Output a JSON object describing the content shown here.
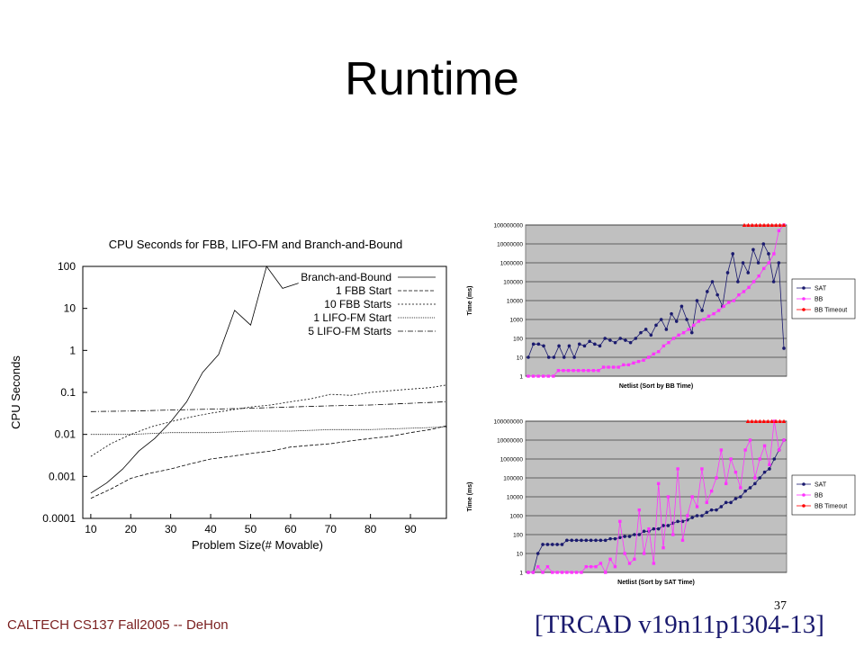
{
  "slide": {
    "title": "Runtime",
    "footer": "CALTECH CS137 Fall2005 -- DeHon",
    "page_number": "37",
    "citation": "[TRCAD v19n11p1304-13]"
  },
  "chart_data": [
    {
      "type": "line",
      "title": "CPU Seconds for FBB, LIFO-FM and Branch-and-Bound",
      "xlabel": "Problem Size(# Movable)",
      "ylabel": "CPU Seconds",
      "xlim": [
        8,
        99
      ],
      "ylim": [
        0.0001,
        100
      ],
      "yscale": "log",
      "xticks": [
        "10",
        "20",
        "30",
        "40",
        "50",
        "60",
        "70",
        "80",
        "90"
      ],
      "yticks": [
        "100",
        "10",
        "1",
        "0.1",
        "0.01",
        "0.001",
        "0.0001"
      ],
      "legend": "top-right",
      "colors": {
        "line": "#000000",
        "frame": "#000000"
      },
      "series": [
        {
          "name": "Branch-and-Bound",
          "style": "solid",
          "x": [
            10,
            14,
            18,
            22,
            26,
            30,
            34,
            38,
            42,
            46,
            50,
            54,
            58,
            62
          ],
          "y": [
            0.0004,
            0.0007,
            0.0015,
            0.004,
            0.008,
            0.02,
            0.06,
            0.3,
            0.8,
            9,
            4,
            100,
            30,
            40
          ]
        },
        {
          "name": "1 FBB Start",
          "style": "dashed",
          "x": [
            10,
            15,
            20,
            25,
            30,
            35,
            40,
            45,
            50,
            55,
            60,
            65,
            70,
            75,
            80,
            85,
            90,
            95,
            99
          ],
          "y": [
            0.0003,
            0.0005,
            0.0009,
            0.0012,
            0.0015,
            0.002,
            0.0026,
            0.003,
            0.0035,
            0.004,
            0.005,
            0.0055,
            0.006,
            0.007,
            0.008,
            0.009,
            0.011,
            0.013,
            0.016
          ]
        },
        {
          "name": "10 FBB Starts",
          "style": "dotted",
          "x": [
            10,
            15,
            20,
            25,
            30,
            35,
            40,
            45,
            50,
            55,
            60,
            65,
            70,
            75,
            80,
            85,
            90,
            95,
            99
          ],
          "y": [
            0.003,
            0.006,
            0.01,
            0.015,
            0.02,
            0.026,
            0.032,
            0.038,
            0.045,
            0.05,
            0.06,
            0.07,
            0.09,
            0.085,
            0.1,
            0.11,
            0.12,
            0.13,
            0.15
          ]
        },
        {
          "name": "1 LIFO-FM Start",
          "style": "dot-dense",
          "x": [
            10,
            20,
            30,
            40,
            50,
            60,
            70,
            80,
            90,
            99
          ],
          "y": [
            0.01,
            0.01,
            0.011,
            0.011,
            0.012,
            0.012,
            0.013,
            0.013,
            0.014,
            0.015
          ]
        },
        {
          "name": "5 LIFO-FM Starts",
          "style": "dashdot",
          "x": [
            10,
            20,
            30,
            40,
            50,
            60,
            70,
            80,
            90,
            99
          ],
          "y": [
            0.035,
            0.036,
            0.038,
            0.04,
            0.042,
            0.045,
            0.048,
            0.05,
            0.055,
            0.06
          ]
        }
      ]
    },
    {
      "type": "scatter",
      "title": "",
      "xlabel": "Netlist (Sort by BB Time)",
      "ylabel": "Time (ms)",
      "yscale": "log",
      "ylim": [
        1,
        100000000
      ],
      "yticks": [
        "100000000",
        "10000000",
        "1000000",
        "100000",
        "10000",
        "1000",
        "100",
        "10",
        "1"
      ],
      "grid": true,
      "legend": "right",
      "colors": {
        "plot_bg": "#c0c0c0",
        "SAT": "#1a1a6e",
        "BB": "#ff33ff",
        "BB Timeout": "#ff0000"
      },
      "series": [
        {
          "name": "SAT",
          "y": [
            10,
            50,
            50,
            40,
            10,
            10,
            40,
            10,
            40,
            10,
            50,
            40,
            70,
            50,
            40,
            100,
            80,
            60,
            100,
            80,
            60,
            100,
            200,
            300,
            150,
            500,
            1000,
            300,
            2000,
            800,
            5000,
            1000,
            200,
            10000,
            3000,
            30000,
            100000,
            20000,
            5000,
            300000,
            3000000,
            100000,
            1000000,
            300000,
            5000000,
            1000000,
            10000000,
            3000000,
            100000,
            1000000,
            30
          ]
        },
        {
          "name": "BB",
          "y": [
            1,
            1,
            1,
            1,
            1,
            1,
            2,
            2,
            2,
            2,
            2,
            2,
            2,
            2,
            2,
            3,
            3,
            3,
            3,
            4,
            4,
            5,
            6,
            7,
            10,
            15,
            20,
            40,
            60,
            100,
            150,
            200,
            300,
            500,
            800,
            1000,
            1500,
            2000,
            3000,
            5000,
            8000,
            10000,
            20000,
            30000,
            50000,
            100000,
            200000,
            500000,
            1000000,
            3000000,
            50000000,
            100000000
          ]
        },
        {
          "name": "BB Timeout",
          "y": [
            100000000,
            100000000,
            100000000,
            100000000,
            100000000,
            100000000,
            100000000,
            100000000,
            100000000,
            100000000,
            100000000
          ]
        }
      ]
    },
    {
      "type": "scatter",
      "title": "",
      "xlabel": "Netlist (Sort by SAT Time)",
      "ylabel": "Time (ms)",
      "yscale": "log",
      "ylim": [
        1,
        100000000
      ],
      "yticks": [
        "100000000",
        "10000000",
        "1000000",
        "100000",
        "10000",
        "1000",
        "100",
        "10",
        "1"
      ],
      "grid": true,
      "legend": "right",
      "colors": {
        "plot_bg": "#c0c0c0",
        "SAT": "#1a1a6e",
        "BB": "#ff33ff",
        "BB Timeout": "#ff0000"
      },
      "series": [
        {
          "name": "SAT",
          "y": [
            1,
            1,
            10,
            30,
            30,
            30,
            30,
            30,
            50,
            50,
            50,
            50,
            50,
            50,
            50,
            50,
            50,
            60,
            60,
            70,
            80,
            80,
            100,
            100,
            150,
            150,
            200,
            200,
            300,
            300,
            400,
            500,
            500,
            600,
            800,
            1000,
            1000,
            1500,
            2000,
            2000,
            3000,
            5000,
            5000,
            8000,
            10000,
            20000,
            30000,
            50000,
            100000,
            200000,
            300000,
            1000000,
            3000000,
            10000000
          ]
        },
        {
          "name": "BB",
          "y": [
            1,
            1,
            2,
            1,
            2,
            1,
            1,
            1,
            1,
            1,
            1,
            1,
            2,
            2,
            2,
            3,
            1,
            5,
            2,
            500,
            10,
            3,
            5,
            2000,
            10,
            200,
            3,
            50000,
            20,
            10000,
            100,
            300000,
            50,
            1000,
            10000,
            3000,
            300000,
            5000,
            20000,
            100000,
            3000000,
            50000,
            1000000,
            200000,
            30000,
            3000000,
            10000000,
            100000,
            1000000,
            5000000,
            500000,
            100000000,
            3000000,
            10000000
          ]
        },
        {
          "name": "BB Timeout",
          "y": [
            100000000,
            100000000,
            100000000,
            100000000,
            100000000,
            100000000,
            100000000,
            100000000,
            100000000,
            100000000
          ]
        }
      ]
    }
  ]
}
